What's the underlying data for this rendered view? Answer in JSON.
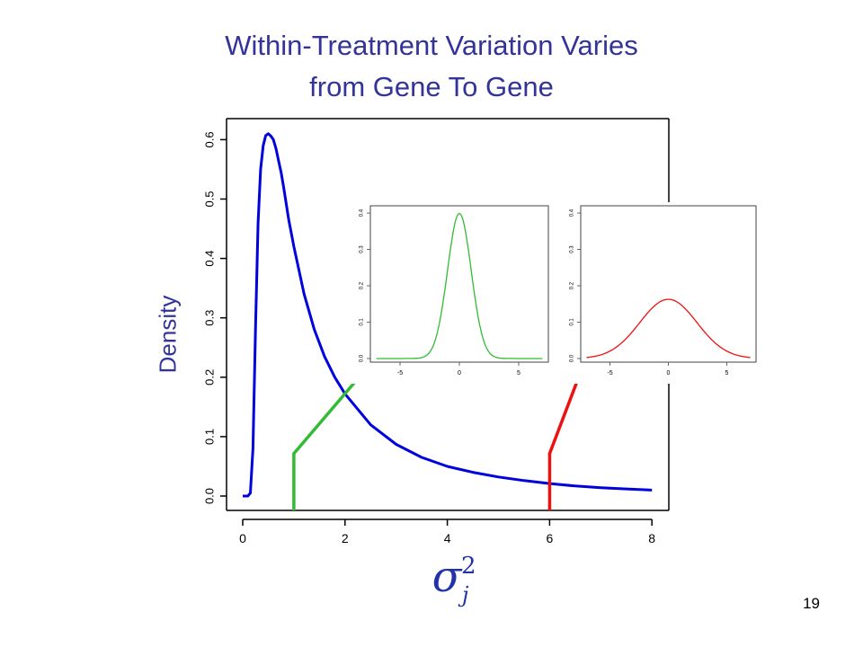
{
  "slide": {
    "title_line1": "Within-Treatment Variation Varies",
    "title_line2": "from Gene To Gene",
    "page_number": "19"
  },
  "colors": {
    "title": "#333399",
    "main_curve": "#0000dd",
    "green": "#33bb33",
    "red": "#ee1111",
    "axis": "#000000"
  },
  "chart_data": [
    {
      "type": "line",
      "id": "main",
      "title": "",
      "xlabel": "σ_j^2",
      "ylabel": "Density",
      "xlim": [
        0,
        8.3
      ],
      "ylim": [
        0,
        0.63
      ],
      "x_ticks": [
        "0",
        "2",
        "4",
        "6",
        "8"
      ],
      "y_ticks": [
        "0.0",
        "0.1",
        "0.2",
        "0.3",
        "0.4",
        "0.5",
        "0.6"
      ],
      "grid": false,
      "series": [
        {
          "x": [
            0,
            0.1,
            0.15,
            0.2,
            0.25,
            0.3,
            0.35,
            0.4,
            0.45,
            0.5,
            0.55,
            0.6,
            0.65,
            0.7,
            0.75,
            0.8,
            0.9,
            1.0,
            1.2,
            1.4,
            1.6,
            1.8,
            2.0,
            2.5,
            3.0,
            3.5,
            4.0,
            4.5,
            5.0,
            5.5,
            6.0,
            6.5,
            7.0,
            7.5,
            8.0
          ],
          "y": [
            0.0,
            0.0,
            0.005,
            0.08,
            0.28,
            0.46,
            0.55,
            0.59,
            0.607,
            0.61,
            0.606,
            0.6,
            0.585,
            0.565,
            0.545,
            0.52,
            0.465,
            0.42,
            0.34,
            0.28,
            0.235,
            0.2,
            0.172,
            0.12,
            0.087,
            0.065,
            0.05,
            0.04,
            0.032,
            0.026,
            0.021,
            0.017,
            0.014,
            0.012,
            0.01
          ]
        }
      ],
      "markers": [
        {
          "x": 1,
          "height": 0.073,
          "color": "green"
        },
        {
          "x": 6,
          "height": 0.073,
          "color": "red"
        }
      ]
    },
    {
      "type": "line",
      "id": "inset-green",
      "title": "",
      "xlim": [
        -7.5,
        7.5
      ],
      "ylim": [
        -0.01,
        0.42
      ],
      "x_ticks": [
        "-5",
        "0",
        "5"
      ],
      "y_ticks": [
        "0.0",
        "0.1",
        "0.2",
        "0.3",
        "0.4"
      ],
      "series": [
        {
          "distribution": "normal",
          "mean": 0,
          "sd": 1,
          "x_range": [
            -7,
            7
          ]
        }
      ]
    },
    {
      "type": "line",
      "id": "inset-red",
      "title": "",
      "xlim": [
        -7.5,
        7.5
      ],
      "ylim": [
        -0.01,
        0.42
      ],
      "x_ticks": [
        "-5",
        "0",
        "5"
      ],
      "y_ticks": [
        "0.0",
        "0.1",
        "0.2",
        "0.3",
        "0.4"
      ],
      "series": [
        {
          "distribution": "normal",
          "mean": 0,
          "sd": 2.45,
          "x_range": [
            -7,
            7
          ]
        }
      ]
    }
  ]
}
